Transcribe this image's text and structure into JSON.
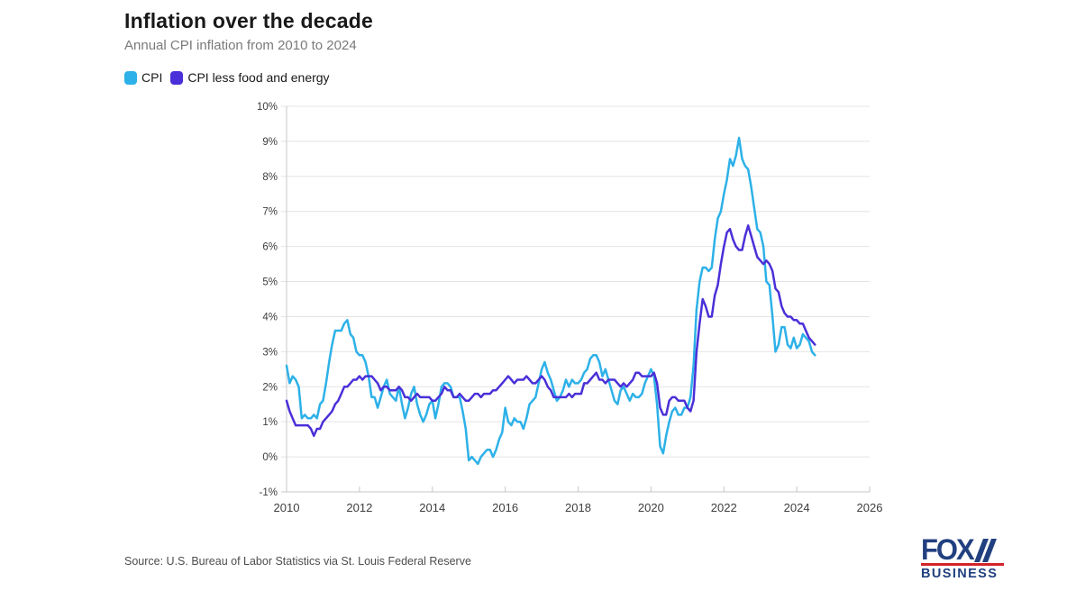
{
  "header": {
    "title": "Inflation over the decade",
    "subtitle": "Annual CPI inflation from 2010 to 2024"
  },
  "legend": {
    "items": [
      {
        "label": "CPI",
        "color": "#2db1e8"
      },
      {
        "label": "CPI less food and energy",
        "color": "#4930d8"
      }
    ]
  },
  "chart_data": {
    "type": "line",
    "title": "Inflation over the decade",
    "subtitle": "Annual CPI inflation from 2010 to 2024",
    "x_start_year": 2010,
    "x_frequency": "monthly",
    "xlim": [
      2010,
      2026
    ],
    "ylim": [
      -1,
      10
    ],
    "x_ticks": [
      2010,
      2012,
      2014,
      2016,
      2018,
      2020,
      2022,
      2024,
      2026
    ],
    "y_ticks": [
      -1,
      0,
      1,
      2,
      3,
      4,
      5,
      6,
      7,
      8,
      9,
      10
    ],
    "y_tick_suffix": "%",
    "grid": "horizontal",
    "legend_position": "top-left",
    "colors": {
      "grid": "#e4e4e4",
      "axis": "#c7c7c7",
      "tick_text": "#3d3d3d"
    },
    "series": [
      {
        "name": "CPI",
        "color": "#2db1e8",
        "values": [
          2.6,
          2.1,
          2.3,
          2.2,
          2.0,
          1.1,
          1.2,
          1.1,
          1.1,
          1.2,
          1.1,
          1.5,
          1.6,
          2.1,
          2.7,
          3.2,
          3.6,
          3.6,
          3.6,
          3.8,
          3.9,
          3.5,
          3.4,
          3.0,
          2.9,
          2.9,
          2.7,
          2.3,
          1.7,
          1.7,
          1.4,
          1.7,
          2.0,
          2.2,
          1.8,
          1.7,
          1.6,
          2.0,
          1.5,
          1.1,
          1.4,
          1.8,
          2.0,
          1.5,
          1.2,
          1.0,
          1.2,
          1.5,
          1.6,
          1.1,
          1.5,
          2.0,
          2.1,
          2.1,
          2.0,
          1.7,
          1.7,
          1.7,
          1.3,
          0.8,
          -0.1,
          0.0,
          -0.1,
          -0.2,
          0.0,
          0.1,
          0.2,
          0.2,
          0.0,
          0.2,
          0.5,
          0.7,
          1.4,
          1.0,
          0.9,
          1.1,
          1.0,
          1.0,
          0.8,
          1.1,
          1.5,
          1.6,
          1.7,
          2.1,
          2.5,
          2.7,
          2.4,
          2.2,
          1.9,
          1.6,
          1.7,
          1.9,
          2.2,
          2.0,
          2.2,
          2.1,
          2.1,
          2.2,
          2.4,
          2.5,
          2.8,
          2.9,
          2.9,
          2.7,
          2.3,
          2.5,
          2.2,
          1.9,
          1.6,
          1.5,
          1.9,
          2.0,
          1.8,
          1.6,
          1.8,
          1.7,
          1.7,
          1.8,
          2.1,
          2.3,
          2.5,
          2.3,
          1.5,
          0.3,
          0.1,
          0.6,
          1.0,
          1.3,
          1.4,
          1.2,
          1.2,
          1.4,
          1.4,
          1.7,
          2.6,
          4.2,
          5.0,
          5.4,
          5.4,
          5.3,
          5.4,
          6.2,
          6.8,
          7.0,
          7.5,
          7.9,
          8.5,
          8.3,
          8.6,
          9.1,
          8.5,
          8.3,
          8.2,
          7.7,
          7.1,
          6.5,
          6.4,
          6.0,
          5.0,
          4.9,
          4.0,
          3.0,
          3.2,
          3.7,
          3.7,
          3.2,
          3.1,
          3.4,
          3.1,
          3.2,
          3.5,
          3.4,
          3.3,
          3.0,
          2.9
        ]
      },
      {
        "name": "CPI less food and energy",
        "color": "#4930d8",
        "values": [
          1.6,
          1.3,
          1.1,
          0.9,
          0.9,
          0.9,
          0.9,
          0.9,
          0.8,
          0.6,
          0.8,
          0.8,
          1.0,
          1.1,
          1.2,
          1.3,
          1.5,
          1.6,
          1.8,
          2.0,
          2.0,
          2.1,
          2.2,
          2.2,
          2.3,
          2.2,
          2.3,
          2.3,
          2.3,
          2.2,
          2.1,
          1.9,
          2.0,
          2.0,
          1.9,
          1.9,
          1.9,
          2.0,
          1.9,
          1.7,
          1.7,
          1.6,
          1.7,
          1.8,
          1.7,
          1.7,
          1.7,
          1.7,
          1.6,
          1.6,
          1.7,
          1.8,
          2.0,
          1.9,
          1.9,
          1.7,
          1.7,
          1.8,
          1.7,
          1.6,
          1.6,
          1.7,
          1.8,
          1.8,
          1.7,
          1.8,
          1.8,
          1.8,
          1.9,
          1.9,
          2.0,
          2.1,
          2.2,
          2.3,
          2.2,
          2.1,
          2.2,
          2.2,
          2.2,
          2.3,
          2.2,
          2.1,
          2.1,
          2.2,
          2.3,
          2.2,
          2.0,
          1.9,
          1.7,
          1.7,
          1.7,
          1.7,
          1.7,
          1.8,
          1.7,
          1.8,
          1.8,
          1.8,
          2.1,
          2.1,
          2.2,
          2.3,
          2.4,
          2.2,
          2.2,
          2.1,
          2.2,
          2.2,
          2.2,
          2.1,
          2.0,
          2.1,
          2.0,
          2.1,
          2.2,
          2.4,
          2.4,
          2.3,
          2.3,
          2.3,
          2.3,
          2.4,
          2.1,
          1.4,
          1.2,
          1.2,
          1.6,
          1.7,
          1.7,
          1.6,
          1.6,
          1.6,
          1.4,
          1.3,
          1.6,
          3.0,
          3.8,
          4.5,
          4.3,
          4.0,
          4.0,
          4.6,
          4.9,
          5.5,
          6.0,
          6.4,
          6.5,
          6.2,
          6.0,
          5.9,
          5.9,
          6.3,
          6.6,
          6.3,
          6.0,
          5.7,
          5.6,
          5.5,
          5.6,
          5.5,
          5.3,
          4.8,
          4.7,
          4.3,
          4.1,
          4.0,
          4.0,
          3.9,
          3.9,
          3.8,
          3.8,
          3.6,
          3.4,
          3.3,
          3.2
        ]
      }
    ]
  },
  "footer": {
    "source": "Source: U.S. Bureau of Labor Statistics via St. Louis Federal Reserve"
  },
  "logo": {
    "line1": "FOX",
    "line2": "BUSINESS",
    "navy": "#21407f",
    "red": "#d2232a"
  }
}
